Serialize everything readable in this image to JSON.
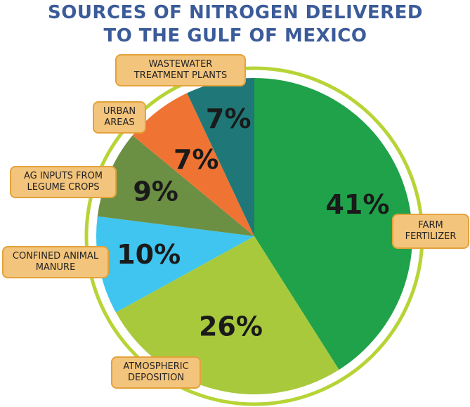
{
  "chart_data": {
    "type": "pie",
    "title": "SOURCES OF NITROGEN DELIVERED TO THE GULF OF MEXICO",
    "categories": [
      "FARM FERTILIZER",
      "ATMOSPHERIC DEPOSITION",
      "CONFINED ANIMAL MANURE",
      "AG INPUTS FROM LEGUME CROPS",
      "URBAN AREAS",
      "WASTEWATER TREATMENT PLANTS"
    ],
    "values": [
      41,
      26,
      10,
      9,
      7,
      7
    ],
    "value_labels": [
      "41%",
      "26%",
      "10%",
      "9%",
      "7%",
      "7%"
    ],
    "colors": [
      "#1fa24a",
      "#a8c93c",
      "#3fc5ef",
      "#6b8f43",
      "#ef7434",
      "#1f7877"
    ]
  }
}
